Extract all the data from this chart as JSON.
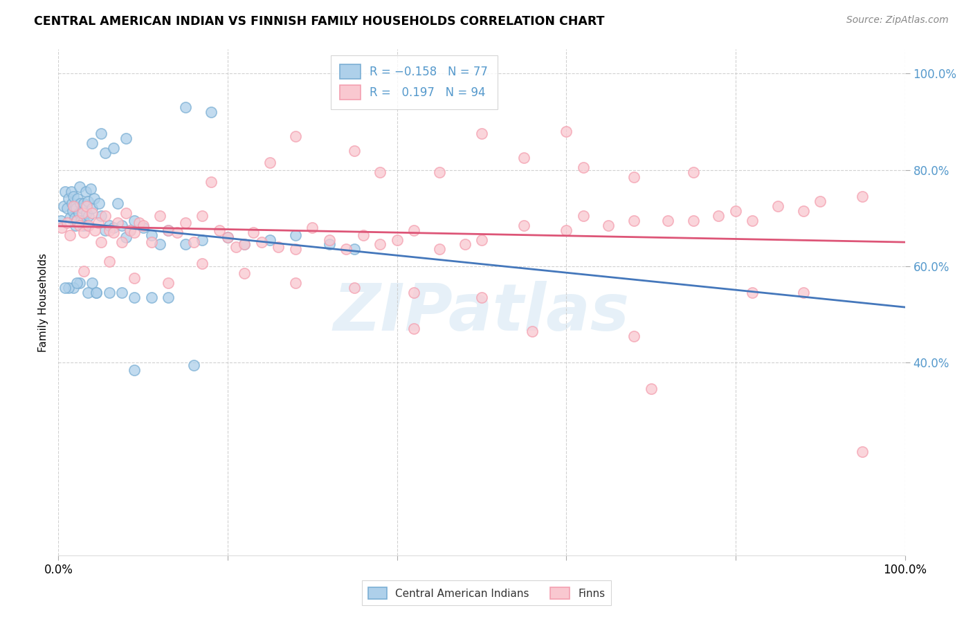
{
  "title": "CENTRAL AMERICAN INDIAN VS FINNISH FAMILY HOUSEHOLDS CORRELATION CHART",
  "source": "Source: ZipAtlas.com",
  "ylabel": "Family Households",
  "xlim": [
    0.0,
    1.0
  ],
  "ylim": [
    0.0,
    1.05
  ],
  "watermark": "ZIPatlas",
  "color_blue": "#7BAFD4",
  "color_blue_fill": "#AED0EA",
  "color_pink": "#F4A0B0",
  "color_pink_fill": "#F9C8D0",
  "color_trendline_blue": "#4477BB",
  "color_trendline_pink": "#DD5577",
  "color_axis_right": "#5599CC",
  "background_color": "#FFFFFF",
  "blue_x": [
    0.003,
    0.006,
    0.008,
    0.01,
    0.012,
    0.014,
    0.015,
    0.016,
    0.017,
    0.018,
    0.019,
    0.02,
    0.02,
    0.021,
    0.022,
    0.023,
    0.024,
    0.025,
    0.026,
    0.027,
    0.028,
    0.029,
    0.03,
    0.03,
    0.032,
    0.033,
    0.034,
    0.035,
    0.036,
    0.038,
    0.04,
    0.042,
    0.045,
    0.048,
    0.05,
    0.055,
    0.06,
    0.065,
    0.07,
    0.075,
    0.08,
    0.085,
    0.09,
    0.1,
    0.11,
    0.12,
    0.13,
    0.15,
    0.17,
    0.2,
    0.22,
    0.25,
    0.28,
    0.32,
    0.35,
    0.15,
    0.18,
    0.08,
    0.05,
    0.04,
    0.055,
    0.065,
    0.04,
    0.025,
    0.018,
    0.012,
    0.008,
    0.022,
    0.035,
    0.045,
    0.06,
    0.075,
    0.09,
    0.11,
    0.13,
    0.16,
    0.09
  ],
  "blue_y": [
    0.695,
    0.725,
    0.755,
    0.72,
    0.74,
    0.7,
    0.755,
    0.73,
    0.715,
    0.745,
    0.7,
    0.725,
    0.685,
    0.72,
    0.695,
    0.74,
    0.71,
    0.765,
    0.73,
    0.695,
    0.72,
    0.685,
    0.73,
    0.695,
    0.755,
    0.71,
    0.685,
    0.735,
    0.705,
    0.76,
    0.72,
    0.74,
    0.545,
    0.73,
    0.705,
    0.675,
    0.685,
    0.68,
    0.73,
    0.685,
    0.66,
    0.675,
    0.695,
    0.68,
    0.665,
    0.645,
    0.675,
    0.645,
    0.655,
    0.66,
    0.645,
    0.655,
    0.665,
    0.645,
    0.635,
    0.93,
    0.92,
    0.865,
    0.875,
    0.855,
    0.835,
    0.845,
    0.565,
    0.565,
    0.555,
    0.555,
    0.555,
    0.565,
    0.545,
    0.545,
    0.545,
    0.545,
    0.535,
    0.535,
    0.535,
    0.395,
    0.385
  ],
  "pink_x": [
    0.004,
    0.01,
    0.014,
    0.018,
    0.022,
    0.025,
    0.028,
    0.03,
    0.033,
    0.036,
    0.04,
    0.043,
    0.047,
    0.05,
    0.055,
    0.06,
    0.065,
    0.07,
    0.075,
    0.08,
    0.085,
    0.09,
    0.095,
    0.1,
    0.11,
    0.12,
    0.13,
    0.14,
    0.15,
    0.16,
    0.17,
    0.18,
    0.19,
    0.2,
    0.21,
    0.22,
    0.23,
    0.24,
    0.26,
    0.28,
    0.3,
    0.32,
    0.34,
    0.36,
    0.38,
    0.4,
    0.42,
    0.45,
    0.48,
    0.5,
    0.55,
    0.6,
    0.62,
    0.65,
    0.68,
    0.7,
    0.72,
    0.75,
    0.78,
    0.8,
    0.82,
    0.85,
    0.88,
    0.9,
    0.95,
    0.03,
    0.06,
    0.09,
    0.13,
    0.17,
    0.22,
    0.28,
    0.35,
    0.42,
    0.5,
    0.35,
    0.25,
    0.38,
    0.45,
    0.55,
    0.62,
    0.68,
    0.75,
    0.82,
    0.88,
    0.95,
    0.6,
    0.5,
    0.35,
    0.28,
    0.42,
    0.56,
    0.68
  ],
  "pink_y": [
    0.68,
    0.69,
    0.665,
    0.725,
    0.695,
    0.685,
    0.71,
    0.67,
    0.725,
    0.685,
    0.71,
    0.675,
    0.69,
    0.65,
    0.705,
    0.675,
    0.67,
    0.69,
    0.65,
    0.71,
    0.675,
    0.67,
    0.69,
    0.685,
    0.65,
    0.705,
    0.675,
    0.67,
    0.69,
    0.65,
    0.705,
    0.775,
    0.675,
    0.66,
    0.64,
    0.645,
    0.67,
    0.65,
    0.64,
    0.635,
    0.68,
    0.655,
    0.635,
    0.665,
    0.645,
    0.655,
    0.675,
    0.635,
    0.645,
    0.655,
    0.685,
    0.675,
    0.705,
    0.685,
    0.695,
    0.345,
    0.695,
    0.695,
    0.705,
    0.715,
    0.695,
    0.725,
    0.715,
    0.735,
    0.745,
    0.59,
    0.61,
    0.575,
    0.565,
    0.605,
    0.585,
    0.565,
    0.555,
    0.545,
    0.535,
    0.84,
    0.815,
    0.795,
    0.795,
    0.825,
    0.805,
    0.785,
    0.795,
    0.545,
    0.545,
    0.215,
    0.88,
    0.875,
    1.005,
    0.87,
    0.47,
    0.465,
    0.455
  ]
}
